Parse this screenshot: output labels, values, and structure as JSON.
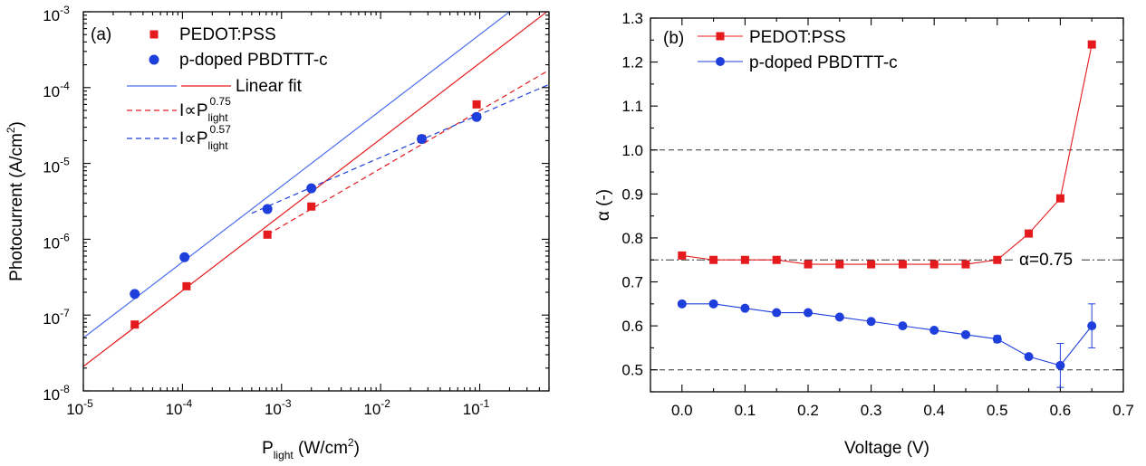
{
  "chart_data": [
    {
      "type": "scatter",
      "panel_label": "(a)",
      "xlabel": "P",
      "xlabel_sub": "light",
      "xlabel_unit": " (W/cm",
      "xlabel_unit_sup": "2",
      "xlabel_close": ")",
      "ylabel": "Photocurrent (A/cm",
      "ylabel_sup": "2",
      "ylabel_close": ")",
      "xscale": "log",
      "yscale": "log",
      "xlim": [
        1e-05,
        0.5
      ],
      "ylim": [
        1e-08,
        0.001
      ],
      "x_ticks": [
        {
          "base": "10",
          "exp": "-5",
          "value": 1e-05
        },
        {
          "base": "10",
          "exp": "-4",
          "value": 0.0001
        },
        {
          "base": "10",
          "exp": "-3",
          "value": 0.001
        },
        {
          "base": "10",
          "exp": "-2",
          "value": 0.01
        },
        {
          "base": "10",
          "exp": "-1",
          "value": 0.1
        }
      ],
      "y_ticks": [
        {
          "base": "10",
          "exp": "-8",
          "value": 1e-08
        },
        {
          "base": "10",
          "exp": "-7",
          "value": 1e-07
        },
        {
          "base": "10",
          "exp": "-6",
          "value": 1e-06
        },
        {
          "base": "10",
          "exp": "-5",
          "value": 1e-05
        },
        {
          "base": "10",
          "exp": "-4",
          "value": 0.0001
        },
        {
          "base": "10",
          "exp": "-3",
          "value": 0.001
        }
      ],
      "series": [
        {
          "name": "PEDOT:PSS",
          "color": "#e41a1c",
          "marker": "square",
          "x": [
            3.3e-05,
            0.00011,
            0.00072,
            0.002,
            0.026,
            0.093
          ],
          "y": [
            7.5e-08,
            2.4e-07,
            1.15e-06,
            2.7e-06,
            2.1e-05,
            6e-05
          ]
        },
        {
          "name": "p-doped PBDTTT-c",
          "color": "#1f3fdd",
          "marker": "circle",
          "x": [
            3.3e-05,
            0.000105,
            0.00072,
            0.002,
            0.026,
            0.093
          ],
          "y": [
            1.9e-07,
            5.8e-07,
            2.5e-06,
            4.7e-06,
            2.1e-05,
            4.1e-05
          ]
        }
      ],
      "fits": [
        {
          "color": "#e41a1c",
          "dash": false,
          "x": [
            1e-05,
            0.5
          ],
          "y": [
            2.1e-08,
            0.00105
          ]
        },
        {
          "color": "#4a6cf0",
          "dash": false,
          "x": [
            1e-05,
            0.5
          ],
          "y": [
            5e-08,
            0.0025
          ]
        },
        {
          "color": "#e41a1c",
          "dash": true,
          "x": [
            0.00072,
            0.5
          ],
          "y": [
            1.15e-06,
            0.00017
          ]
        },
        {
          "color": "#1f3fdd",
          "dash": true,
          "x": [
            0.0005,
            0.5
          ],
          "y": [
            2.2e-06,
            0.00011
          ]
        }
      ],
      "legend": {
        "items": [
          {
            "kind": "marker",
            "marker": "square",
            "color": "#e41a1c",
            "text": "PEDOT:PSS"
          },
          {
            "kind": "marker",
            "marker": "circle",
            "color": "#1f3fdd",
            "text": "p-doped PBDTTT-c"
          },
          {
            "kind": "fitpair",
            "text": "Linear fit"
          },
          {
            "kind": "dash",
            "color": "#e41a1c",
            "pre": "I∝P",
            "sub": "light",
            "sup": "0.75"
          },
          {
            "kind": "dash",
            "color": "#1f3fdd",
            "pre": "I∝P",
            "sub": "light",
            "sup": "0.57"
          }
        ]
      }
    },
    {
      "type": "line",
      "panel_label": "(b)",
      "xlabel": "Voltage (V)",
      "ylabel": "α (-)",
      "xlim": [
        -0.05,
        0.7
      ],
      "ylim": [
        0.45,
        1.3
      ],
      "x_ticks": [
        "0.0",
        "0.1",
        "0.2",
        "0.3",
        "0.4",
        "0.5",
        "0.6",
        "0.7"
      ],
      "y_ticks": [
        "0.5",
        "0.6",
        "0.7",
        "0.8",
        "0.9",
        "1.0",
        "1.1",
        "1.2",
        "1.3"
      ],
      "hlines": [
        {
          "y": 1.0,
          "style": "dash"
        },
        {
          "y": 0.5,
          "style": "dash"
        },
        {
          "y": 0.75,
          "style": "dashdot",
          "label": "α=0.75"
        }
      ],
      "series": [
        {
          "name": "PEDOT:PSS",
          "color": "#e41a1c",
          "marker": "square",
          "x": [
            0.0,
            0.05,
            0.1,
            0.15,
            0.2,
            0.25,
            0.3,
            0.35,
            0.4,
            0.45,
            0.5,
            0.55,
            0.6,
            0.65
          ],
          "y": [
            0.76,
            0.75,
            0.75,
            0.75,
            0.74,
            0.74,
            0.74,
            0.74,
            0.74,
            0.74,
            0.75,
            0.81,
            0.89,
            1.24
          ]
        },
        {
          "name": "p-doped PBDTTT-c",
          "color": "#1f3fdd",
          "marker": "circle",
          "x": [
            0.0,
            0.05,
            0.1,
            0.15,
            0.2,
            0.25,
            0.3,
            0.35,
            0.4,
            0.45,
            0.5,
            0.55,
            0.6,
            0.65
          ],
          "y": [
            0.65,
            0.65,
            0.64,
            0.63,
            0.63,
            0.62,
            0.61,
            0.6,
            0.59,
            0.58,
            0.57,
            0.53,
            0.51,
            0.6
          ],
          "err": [
            0,
            0,
            0,
            0,
            0,
            0,
            0,
            0,
            0,
            0,
            0.008,
            0,
            0.05,
            0.05
          ]
        }
      ]
    }
  ]
}
